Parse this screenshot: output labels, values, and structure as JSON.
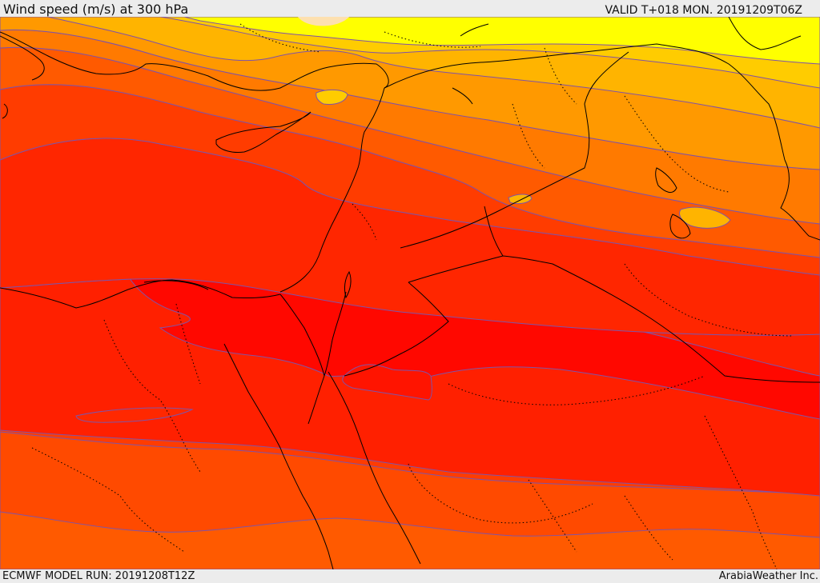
{
  "header": {
    "title": "Wind speed (m/s) at 300 hPa",
    "valid_time": "VALID T+018 MON. 20191209T06Z"
  },
  "footer": {
    "model_run": "ECMWF MODEL RUN: 20191208T12Z",
    "credit": "ArabiaWeather Inc."
  },
  "map": {
    "field": "wind speed",
    "level": "300 hPa",
    "palette": [
      "#ffff00",
      "#ffcc00",
      "#ffb400",
      "#ff9900",
      "#ff7a00",
      "#ff5a00",
      "#ff3c00",
      "#ff2000",
      "#ff0800"
    ],
    "contour_color": "#7f53a8",
    "border_color": "#000000"
  }
}
